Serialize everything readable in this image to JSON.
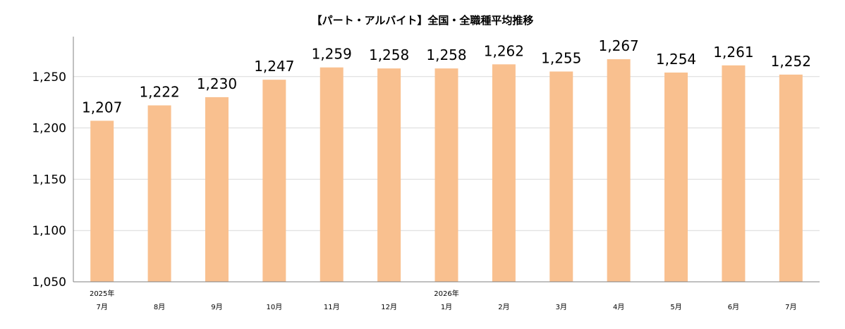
{
  "chart_data": {
    "type": "bar",
    "title": "【パート・アルバイト】全国・全職種平均推移",
    "xlabel": "",
    "ylabel": "",
    "categories": [
      {
        "month": "7月",
        "year": "2025年"
      },
      {
        "month": "8月",
        "year": ""
      },
      {
        "month": "9月",
        "year": ""
      },
      {
        "month": "10月",
        "year": ""
      },
      {
        "month": "11月",
        "year": ""
      },
      {
        "month": "12月",
        "year": ""
      },
      {
        "month": "1月",
        "year": "2026年"
      },
      {
        "month": "2月",
        "year": ""
      },
      {
        "month": "3月",
        "year": ""
      },
      {
        "month": "4月",
        "year": ""
      },
      {
        "month": "5月",
        "year": ""
      },
      {
        "month": "6月",
        "year": ""
      },
      {
        "month": "7月",
        "year": ""
      }
    ],
    "values": [
      1207,
      1222,
      1230,
      1247,
      1259,
      1258,
      1258,
      1262,
      1255,
      1267,
      1254,
      1261,
      1252
    ],
    "value_labels": [
      "1,207",
      "1,222",
      "1,230",
      "1,247",
      "1,259",
      "1,258",
      "1,258",
      "1,262",
      "1,255",
      "1,267",
      "1,254",
      "1,261",
      "1,252"
    ],
    "ylim": [
      1050,
      1290
    ],
    "yticks": [
      1050,
      1100,
      1150,
      1200,
      1250
    ],
    "ytick_labels": [
      "1,050",
      "1,100",
      "1,150",
      "1,200",
      "1,250"
    ],
    "grid": true,
    "legend": "none",
    "colors": {
      "bar": "#F9C08F",
      "grid": "#D9D9D9",
      "axis": "#808080"
    }
  }
}
